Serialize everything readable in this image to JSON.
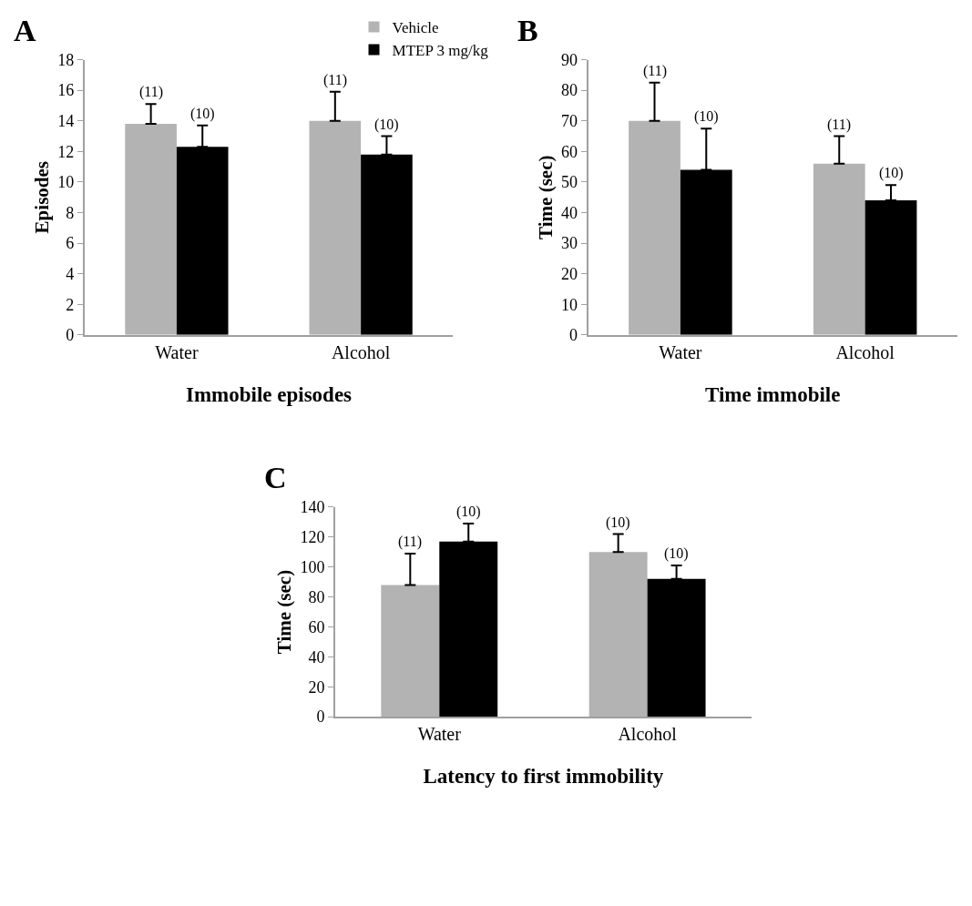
{
  "chart_data": [
    {
      "type": "bar",
      "title": "A",
      "xlabel": "Immobile episodes",
      "ylabel": "Episodes",
      "categories": [
        "Water",
        "Alcohol"
      ],
      "ylim": [
        0,
        18
      ],
      "yticks": [
        0,
        2,
        4,
        6,
        8,
        10,
        12,
        14,
        16,
        18
      ],
      "legend": "top right",
      "series": [
        {
          "name": "Vehicle",
          "color": "#b3b3b3",
          "values": [
            13.8,
            14.0
          ],
          "errors": [
            [
              13.8,
              15.1
            ],
            [
              14.0,
              15.9
            ]
          ]
        },
        {
          "name": "MTEP 3 mg/kg",
          "color": "#000000",
          "values": [
            12.3,
            11.8
          ],
          "errors": [
            [
              12.3,
              13.7
            ],
            [
              11.8,
              13.0
            ]
          ]
        }
      ],
      "annotations": [
        "(11)",
        "(10)",
        "(11)",
        "(10)"
      ]
    },
    {
      "type": "bar",
      "title": "B",
      "xlabel": "Time immobile",
      "ylabel": "Time (sec)",
      "categories": [
        "Water",
        "Alcohol"
      ],
      "ylim": [
        0,
        90
      ],
      "yticks": [
        0,
        10,
        20,
        30,
        40,
        50,
        60,
        70,
        80,
        90
      ],
      "series": [
        {
          "color": "#b3b3b3",
          "values": [
            70,
            56
          ],
          "errors": [
            [
              70,
              82.5
            ],
            [
              56,
              65
            ]
          ]
        },
        {
          "color": "#000000",
          "values": [
            54,
            44
          ],
          "errors": [
            [
              54,
              67.5
            ],
            [
              44,
              49
            ]
          ]
        }
      ],
      "annotations": [
        "(11)",
        "(10)",
        "(11)",
        "(10)"
      ]
    },
    {
      "type": "bar",
      "title": "C",
      "xlabel": "Latency to first immobility",
      "ylabel": "Time (sec)",
      "categories": [
        "Water",
        "Alcohol"
      ],
      "ylim": [
        0,
        140
      ],
      "yticks": [
        0,
        20,
        40,
        60,
        80,
        100,
        120,
        140
      ],
      "series": [
        {
          "color": "#b3b3b3",
          "values": [
            88,
            110
          ],
          "errors": [
            [
              88,
              109
            ],
            [
              110,
              122
            ]
          ]
        },
        {
          "color": "#000000",
          "values": [
            117,
            92
          ],
          "errors": [
            [
              117,
              129
            ],
            [
              92,
              101
            ]
          ]
        }
      ],
      "annotations": [
        "(11)",
        "(10)",
        "(10)",
        "(10)"
      ]
    }
  ]
}
